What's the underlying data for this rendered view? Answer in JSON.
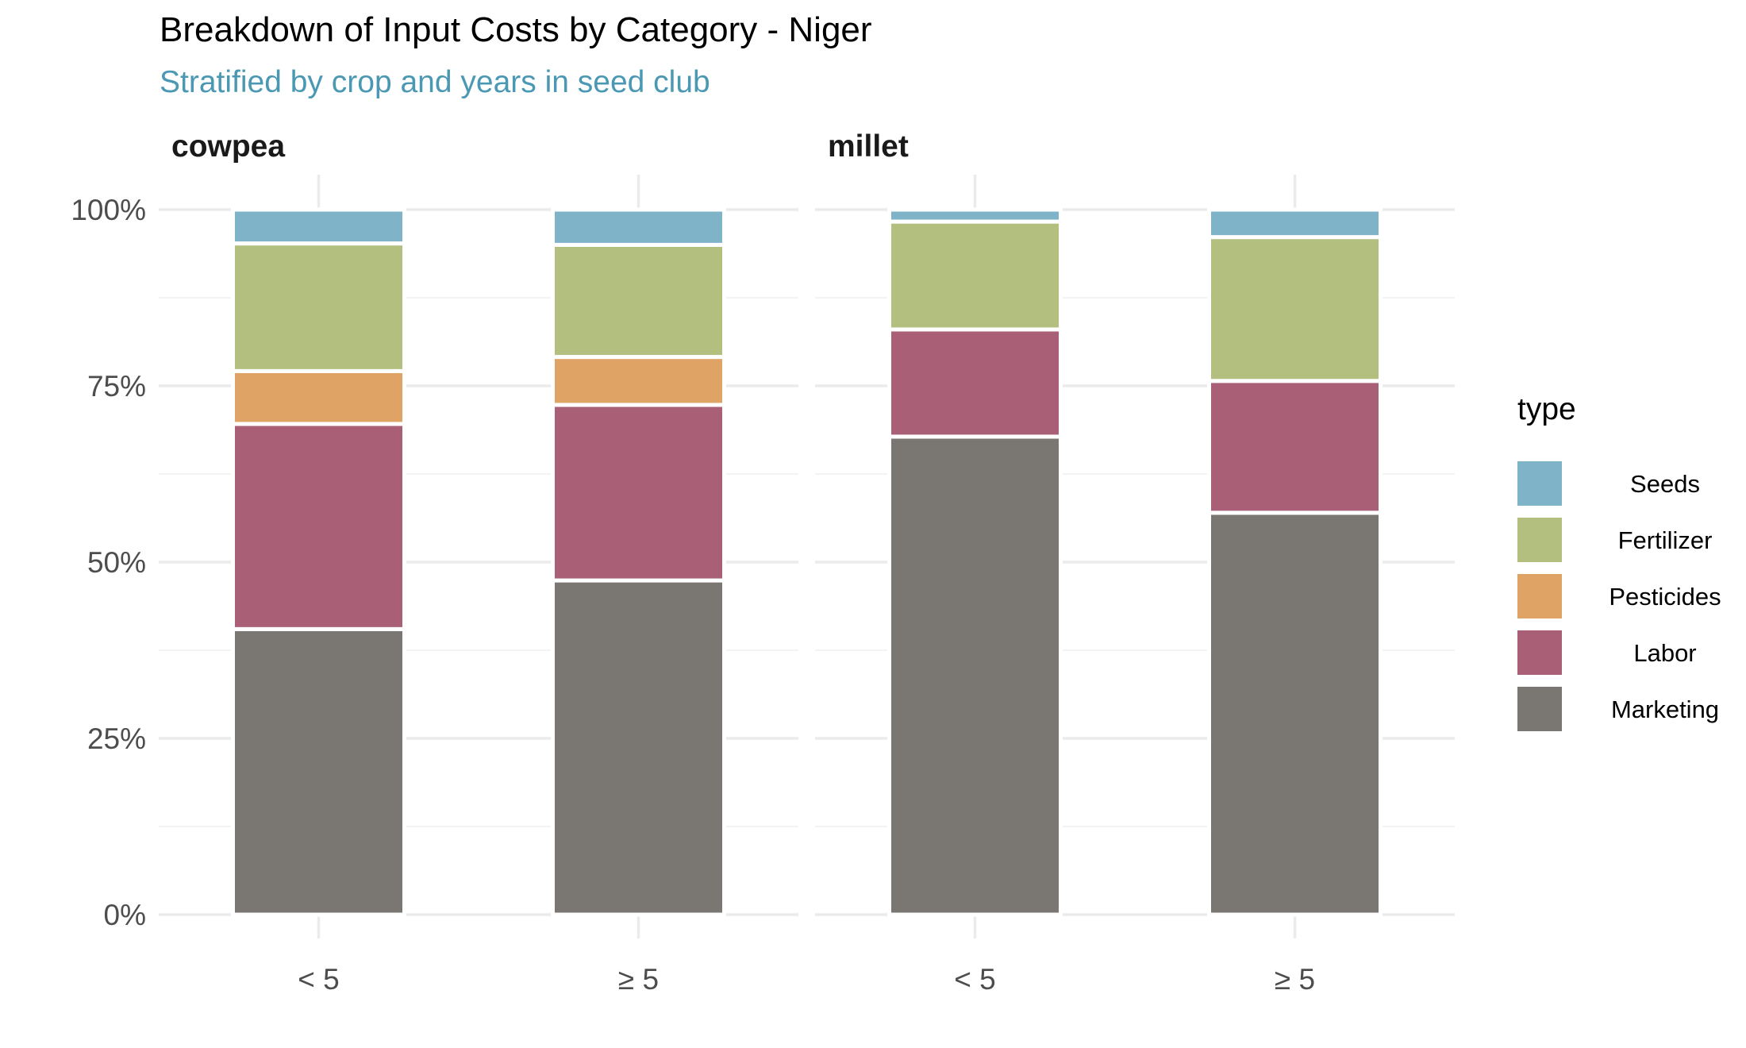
{
  "chart_data": {
    "type": "bar",
    "stacked": true,
    "percent_axis": true,
    "title": "Breakdown of Input Costs by Category - Niger",
    "subtitle": "Stratified by crop and years in seed club",
    "categories": [
      "< 5",
      "≥ 5"
    ],
    "ylim": [
      0,
      1
    ],
    "yticks": [
      0,
      0.25,
      0.5,
      0.75,
      1.0
    ],
    "ytick_labels": [
      "0%",
      "25%",
      "50%",
      "75%",
      "100%"
    ],
    "grid": true,
    "legend": {
      "title": "type",
      "position": "right",
      "labels": [
        "Seeds",
        "Fertilizer",
        "Pesticides",
        "Labor",
        "Marketing"
      ]
    },
    "colors": {
      "Seeds": "#7DB3C7",
      "Fertilizer": "#B1BE7C",
      "Pesticides": "#E0A264",
      "Labor": "#A85E74",
      "Marketing": "#787570"
    },
    "subtitle_color": "#4A98B3",
    "stack_order_bottom_to_top": [
      "Marketing",
      "Labor",
      "Pesticides",
      "Fertilizer",
      "Seeds"
    ],
    "facets": [
      {
        "label": "cowpea",
        "series": [
          {
            "name": "Marketing",
            "values": [
              0.405,
              0.474
            ]
          },
          {
            "name": "Labor",
            "values": [
              0.291,
              0.249
            ]
          },
          {
            "name": "Pesticides",
            "values": [
              0.075,
              0.068
            ]
          },
          {
            "name": "Fertilizer",
            "values": [
              0.181,
              0.159
            ]
          },
          {
            "name": "Seeds",
            "values": [
              0.048,
              0.05
            ]
          }
        ]
      },
      {
        "label": "millet",
        "series": [
          {
            "name": "Marketing",
            "values": [
              0.678,
              0.57
            ]
          },
          {
            "name": "Labor",
            "values": [
              0.152,
              0.187
            ]
          },
          {
            "name": "Pesticides",
            "values": [
              0.0,
              0.0
            ]
          },
          {
            "name": "Fertilizer",
            "values": [
              0.153,
              0.204
            ]
          },
          {
            "name": "Seeds",
            "values": [
              0.017,
              0.039
            ]
          }
        ]
      }
    ]
  }
}
